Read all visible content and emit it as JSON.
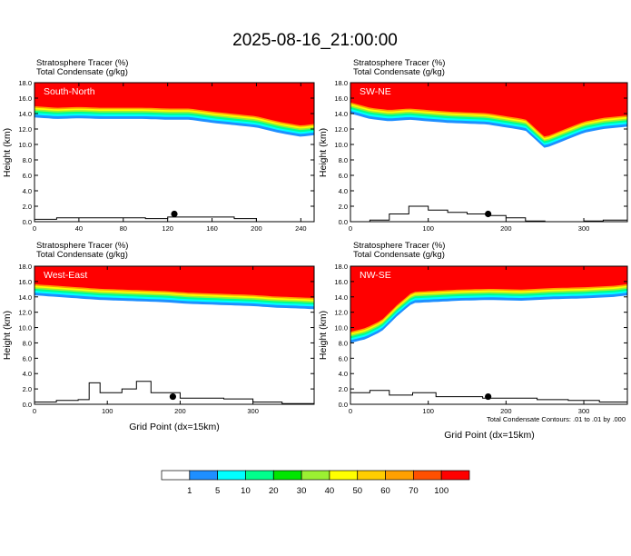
{
  "title": "2025-08-16_21:00:00",
  "panel_header_line1": "Stratosphere Tracer   (%)",
  "panel_header_line2": "Total Condensate   (g/kg)",
  "ylabel": "Height (km)",
  "xlabel": "Grid Point (dx=15km)",
  "contour_note": "Total Condensate Contours: .01 to .01 by .000",
  "colors": {
    "fill_levels": [
      "#ffffff",
      "#1e8fff",
      "#00ffff",
      "#00ff8c",
      "#00e600",
      "#9bf032",
      "#ffff00",
      "#ffcd00",
      "#ffa000",
      "#ff5000",
      "#ff0000"
    ],
    "terrain": "#000000"
  },
  "colorbar": {
    "labels": [
      "1",
      "5",
      "10",
      "20",
      "30",
      "40",
      "50",
      "60",
      "70",
      "100"
    ]
  },
  "chart_data": [
    {
      "type": "heatmap",
      "panel_label": "South-North",
      "xlim": [
        0,
        252
      ],
      "ylim": [
        0,
        18
      ],
      "xticks": [
        "0",
        "40",
        "80",
        "120",
        "160",
        "200",
        "240"
      ],
      "yticks": [
        "0.0",
        "2.0",
        "4.0",
        "6.0",
        "8.0",
        "10.0",
        "12.0",
        "14.0",
        "16.0",
        "18.0"
      ],
      "tropopause_x": [
        0,
        20,
        40,
        60,
        80,
        100,
        120,
        140,
        160,
        180,
        200,
        220,
        240,
        252
      ],
      "tropopause_km": [
        13.5,
        13.3,
        13.4,
        13.3,
        13.3,
        13.3,
        13.2,
        13.2,
        12.8,
        12.5,
        12.2,
        11.5,
        11.0,
        11.2
      ],
      "terrain_x": [
        0,
        20,
        40,
        60,
        80,
        100,
        120,
        140,
        160,
        180,
        200,
        220,
        252
      ],
      "terrain_km": [
        0.3,
        0.5,
        0.5,
        0.5,
        0.5,
        0.4,
        0.6,
        0.6,
        0.6,
        0.4,
        0.0,
        0.0,
        0.0
      ],
      "marker": {
        "x": 126,
        "y": 1.0
      }
    },
    {
      "type": "heatmap",
      "panel_label": "SW-NE",
      "xlim": [
        0,
        356
      ],
      "ylim": [
        0,
        18
      ],
      "xticks": [
        "0",
        "100",
        "200",
        "300"
      ],
      "yticks": [
        "0.0",
        "2.0",
        "4.0",
        "6.0",
        "8.0",
        "10.0",
        "12.0",
        "14.0",
        "16.0",
        "18.0"
      ],
      "tropopause_x": [
        0,
        25,
        50,
        75,
        100,
        125,
        150,
        175,
        200,
        225,
        250,
        275,
        300,
        325,
        356
      ],
      "tropopause_km": [
        14.0,
        13.3,
        13.0,
        13.2,
        13.0,
        12.8,
        12.7,
        12.6,
        12.2,
        11.8,
        9.5,
        10.5,
        11.5,
        12.0,
        12.3
      ],
      "terrain_x": [
        0,
        25,
        50,
        75,
        100,
        125,
        150,
        175,
        200,
        225,
        250,
        275,
        300,
        325,
        356
      ],
      "terrain_km": [
        0.0,
        0.2,
        1.0,
        2.0,
        1.5,
        1.2,
        1.0,
        0.8,
        0.5,
        0.1,
        0.0,
        0.0,
        0.1,
        0.2,
        0.5
      ],
      "marker": {
        "x": 177,
        "y": 1.0
      }
    },
    {
      "type": "heatmap",
      "panel_label": "West-East",
      "xlim": [
        0,
        384
      ],
      "ylim": [
        0,
        18
      ],
      "xticks": [
        "0",
        "100",
        "200",
        "300"
      ],
      "yticks": [
        "0.0",
        "2.0",
        "4.0",
        "6.0",
        "8.0",
        "10.0",
        "12.0",
        "14.0",
        "16.0",
        "18.0"
      ],
      "tropopause_x": [
        0,
        30,
        60,
        90,
        120,
        150,
        180,
        210,
        240,
        270,
        300,
        330,
        360,
        384
      ],
      "tropopause_km": [
        14.2,
        14.0,
        13.8,
        13.6,
        13.5,
        13.4,
        13.3,
        13.1,
        13.0,
        12.9,
        12.8,
        12.6,
        12.5,
        12.4
      ],
      "terrain_x": [
        0,
        30,
        60,
        75,
        90,
        120,
        140,
        160,
        200,
        260,
        300,
        340,
        384
      ],
      "terrain_km": [
        0.3,
        0.5,
        0.6,
        2.8,
        1.5,
        2.0,
        3.0,
        1.5,
        0.8,
        0.7,
        0.3,
        0.1,
        0.1
      ],
      "marker": {
        "x": 190,
        "y": 1.0
      }
    },
    {
      "type": "heatmap",
      "panel_label": "NW-SE",
      "xlim": [
        0,
        356
      ],
      "ylim": [
        0,
        18
      ],
      "xticks": [
        "0",
        "100",
        "200",
        "300"
      ],
      "yticks": [
        "0.0",
        "2.0",
        "4.0",
        "6.0",
        "8.0",
        "10.0",
        "12.0",
        "14.0",
        "16.0",
        "18.0"
      ],
      "tropopause_x": [
        0,
        20,
        40,
        60,
        80,
        100,
        140,
        180,
        220,
        260,
        300,
        340,
        356
      ],
      "tropopause_km": [
        8.0,
        8.5,
        9.5,
        11.5,
        13.2,
        13.3,
        13.5,
        13.6,
        13.5,
        13.7,
        13.8,
        14.0,
        14.2
      ],
      "terrain_x": [
        0,
        25,
        50,
        80,
        110,
        140,
        170,
        200,
        240,
        280,
        320,
        356
      ],
      "terrain_km": [
        1.5,
        1.8,
        1.2,
        1.5,
        1.0,
        1.0,
        0.8,
        0.8,
        0.6,
        0.5,
        0.3,
        0.2
      ],
      "marker": {
        "x": 177,
        "y": 1.0
      }
    }
  ]
}
